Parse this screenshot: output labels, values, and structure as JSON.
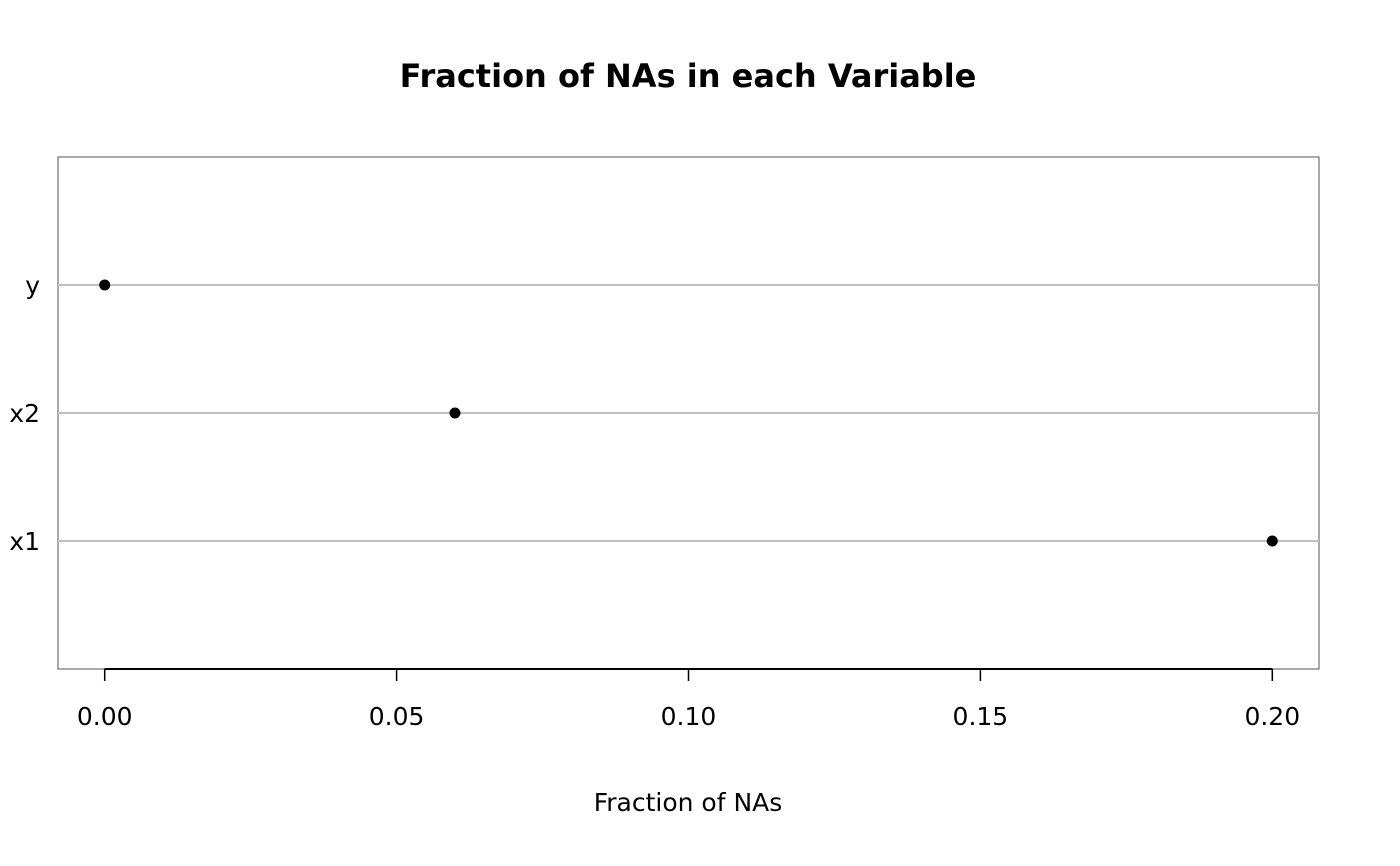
{
  "chart_data": {
    "type": "dot",
    "title": "Fraction of NAs in each Variable",
    "x_label": "Fraction of NAs",
    "categories": [
      "y",
      "x2",
      "x1"
    ],
    "values": [
      0,
      0.06,
      0.2
    ],
    "color": "#000000",
    "xlim": [
      -0.008,
      0.208
    ],
    "xticks": [
      {
        "value": 0,
        "label": "0.00"
      },
      {
        "value": 0.05,
        "label": "0.05"
      },
      {
        "value": 0.1,
        "label": "0.10"
      },
      {
        "value": 0.15,
        "label": "0.15"
      },
      {
        "value": 0.2,
        "label": "0.20"
      }
    ],
    "grid": true
  }
}
